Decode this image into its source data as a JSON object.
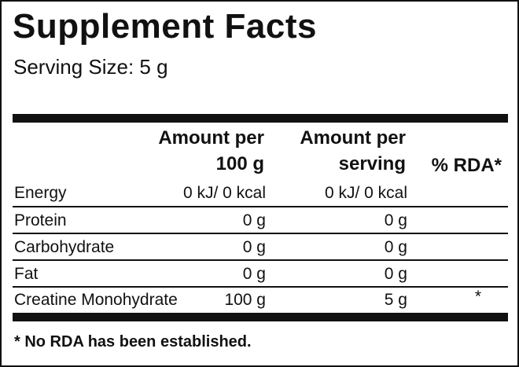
{
  "title": "Supplement Facts",
  "serving_size": "Serving Size: 5 g",
  "columns": {
    "per100": [
      "Amount per",
      "100 g"
    ],
    "per_serving": [
      "Amount per",
      "serving"
    ],
    "rda": "% RDA*"
  },
  "rows": [
    {
      "name": "Energy",
      "per100": "0 kJ/ 0 kcal",
      "per_serving": "0 kJ/ 0 kcal",
      "rda": ""
    },
    {
      "name": "Protein",
      "per100": "0 g",
      "per_serving": "0 g",
      "rda": ""
    },
    {
      "name": "Carbohydrate",
      "per100": "0 g",
      "per_serving": "0 g",
      "rda": ""
    },
    {
      "name": "Fat",
      "per100": "0 g",
      "per_serving": "0 g",
      "rda": ""
    },
    {
      "name": "Creatine Monohydrate",
      "per100": "100 g",
      "per_serving": "5 g",
      "rda": "*"
    }
  ],
  "footnote": "* No RDA has been established."
}
